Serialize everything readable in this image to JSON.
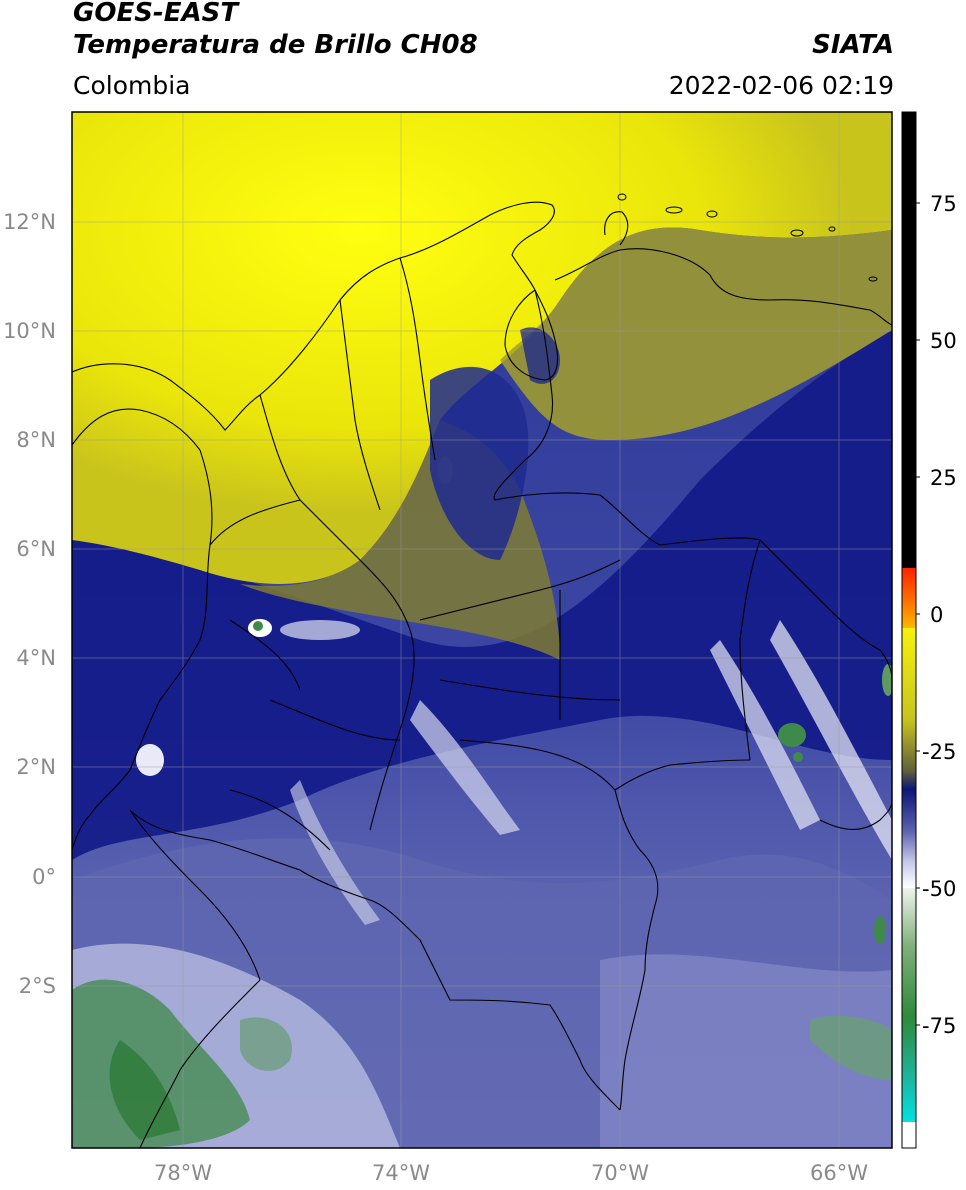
{
  "header": {
    "line1": "GOES-EAST",
    "line2": "Temperatura de Brillo CH08",
    "agency": "SIATA",
    "region": "Colombia",
    "datetime": "2022-02-06 02:19"
  },
  "axes": {
    "lat_labels": [
      "12°N",
      "10°N",
      "8°N",
      "6°N",
      "4°N",
      "2°N",
      "0°",
      "2°S"
    ],
    "lon_labels": [
      "78°W",
      "74°W",
      "70°W",
      "66°W"
    ]
  },
  "colorbar": {
    "tick_labels": [
      "75",
      "50",
      "25",
      "0",
      "-25",
      "-50",
      "-75"
    ],
    "colors": {
      "top": "#000000",
      "red": "#ff2200",
      "orange": "#ff9a00",
      "yellow": "#f4f000",
      "olive": "#5f5f3c",
      "navy": "#0d1577",
      "lavender": "#c8c9ea",
      "white": "#ffffff",
      "green": "#2e8a3a",
      "cyan": "#00e1e1"
    }
  },
  "map": {
    "colors": {
      "yellow_cloud": "#eeea0a",
      "olive_cloud": "#8f8a2a",
      "deep_navy": "#121a88",
      "blue": "#2d3799",
      "light_blue": "#6d72b5",
      "pale": "#c6c8e6",
      "green": "#3f8a4a",
      "gridline": "#9a9a9a",
      "border": "#000000"
    }
  }
}
